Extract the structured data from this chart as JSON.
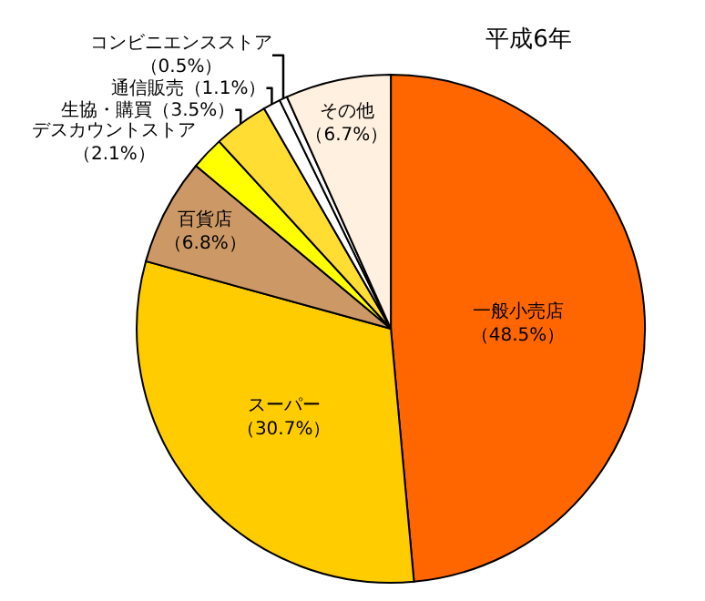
{
  "chart_data": {
    "type": "pie",
    "title": "平成6年",
    "categories": [
      "一般小売店",
      "スーパー",
      "百貨店",
      "デスカウントストア",
      "生協・購買",
      "通信販売",
      "コンビニエンスストア",
      "その他"
    ],
    "values": [
      48.5,
      30.7,
      6.8,
      2.1,
      3.5,
      1.1,
      0.5,
      6.7
    ],
    "value_labels": [
      "（48.5%）",
      "（30.7%）",
      "（6.8%）",
      "（2.1%）",
      "（3.5%）",
      "（1.1%）",
      "（0.5%）",
      "（6.7%）"
    ],
    "colors": [
      "#ff6600",
      "#ffcc00",
      "#cc9966",
      "#ffff00",
      "#ffdd33",
      "#ffffff",
      "#ffffff",
      "#fff0e0"
    ],
    "legend": false
  }
}
